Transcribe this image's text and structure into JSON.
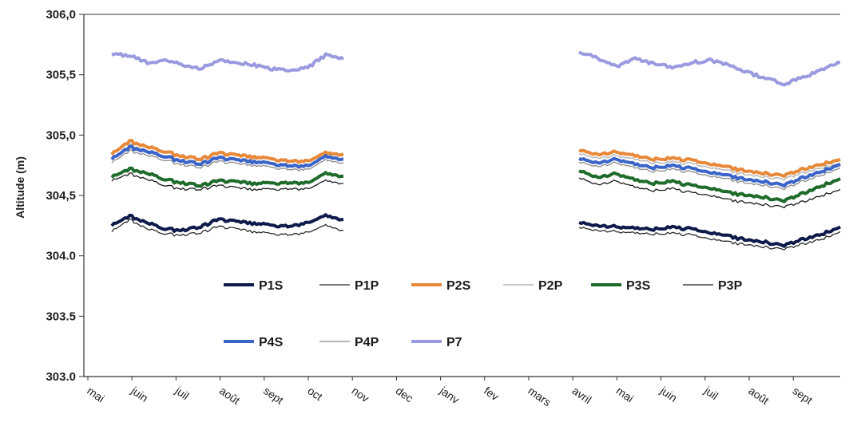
{
  "chart_data": {
    "type": "line",
    "title": "",
    "ylabel": "Altitude (m)",
    "xlabel": "",
    "ylim": [
      303.0,
      306.0
    ],
    "yticks": [
      "303.0",
      "303.5",
      "304.0",
      "304,5",
      "305,0",
      "305,5",
      "306,0"
    ],
    "ytick_values": [
      303.0,
      303.5,
      304.0,
      304.5,
      305.0,
      305.5,
      306.0
    ],
    "x_labels": [
      "mai",
      "juin",
      "juil",
      "août",
      "sept",
      "oct",
      "nov",
      "dec",
      "janv",
      "fev",
      "mars",
      "avril",
      "mai",
      "juin",
      "juil",
      "août",
      "sept"
    ],
    "grid": false,
    "legend_position": "inside-lower-center",
    "series": [
      {
        "name": "P1S",
        "color": "#0d1a4a",
        "seg1": [
          304.25,
          304.33,
          304.27,
          304.22,
          304.21,
          304.24,
          304.3,
          304.28,
          304.27,
          304.25,
          304.24,
          304.27,
          304.34,
          304.3
        ],
        "seg2": [
          304.27,
          304.25,
          304.24,
          304.23,
          304.22,
          304.24,
          304.22,
          304.19,
          304.16,
          304.13,
          304.11,
          304.08,
          304.14,
          304.18,
          304.24
        ]
      },
      {
        "name": "P1P",
        "color": "#2a2a2a",
        "seg1": [
          304.2,
          304.3,
          304.22,
          304.18,
          304.17,
          304.19,
          304.24,
          304.22,
          304.2,
          304.18,
          304.17,
          304.19,
          304.26,
          304.21
        ],
        "seg2": [
          304.23,
          304.21,
          304.2,
          304.19,
          304.18,
          304.19,
          304.17,
          304.14,
          304.11,
          304.09,
          304.07,
          304.05,
          304.1,
          304.14,
          304.2
        ]
      },
      {
        "name": "P2S",
        "color": "#e8893a",
        "seg1": [
          304.84,
          304.95,
          304.9,
          304.86,
          304.82,
          304.8,
          304.85,
          304.83,
          304.82,
          304.8,
          304.78,
          304.78,
          304.86,
          304.84
        ],
        "seg2": [
          304.87,
          304.84,
          304.86,
          304.83,
          304.8,
          304.81,
          304.79,
          304.76,
          304.73,
          304.7,
          304.68,
          304.66,
          304.72,
          304.76,
          304.8
        ]
      },
      {
        "name": "P2P",
        "color": "#b8b8b8",
        "seg1": [
          304.8,
          304.92,
          304.87,
          304.83,
          304.79,
          304.77,
          304.82,
          304.8,
          304.79,
          304.77,
          304.75,
          304.75,
          304.83,
          304.81
        ],
        "seg2": [
          304.84,
          304.81,
          304.83,
          304.8,
          304.77,
          304.78,
          304.76,
          304.73,
          304.7,
          304.67,
          304.65,
          304.63,
          304.69,
          304.73,
          304.77
        ]
      },
      {
        "name": "P3S",
        "color": "#1e6b2a",
        "seg1": [
          304.65,
          304.72,
          304.68,
          304.63,
          304.6,
          304.58,
          304.62,
          304.61,
          304.6,
          304.6,
          304.6,
          304.6,
          304.69,
          304.66
        ],
        "seg2": [
          304.7,
          304.65,
          304.68,
          304.63,
          304.6,
          304.62,
          304.58,
          304.56,
          304.52,
          304.5,
          304.48,
          304.45,
          304.52,
          304.58,
          304.64
        ]
      },
      {
        "name": "P3P",
        "color": "#1a1a1a",
        "seg1": [
          304.62,
          304.68,
          304.63,
          304.58,
          304.55,
          304.55,
          304.58,
          304.56,
          304.55,
          304.55,
          304.55,
          304.55,
          304.63,
          304.6
        ],
        "seg2": [
          304.64,
          304.59,
          304.62,
          304.57,
          304.54,
          304.56,
          304.52,
          304.5,
          304.46,
          304.44,
          304.42,
          304.4,
          304.45,
          304.5,
          304.55
        ]
      },
      {
        "name": "P4S",
        "color": "#3a64c8",
        "seg1": [
          304.8,
          304.9,
          304.86,
          304.82,
          304.78,
          304.76,
          304.81,
          304.79,
          304.78,
          304.76,
          304.74,
          304.74,
          304.83,
          304.8
        ],
        "seg2": [
          304.8,
          304.77,
          304.8,
          304.76,
          304.73,
          304.75,
          304.72,
          304.69,
          304.66,
          304.63,
          304.61,
          304.58,
          304.65,
          304.7,
          304.76
        ]
      },
      {
        "name": "P4P",
        "color": "#8a8a8a",
        "seg1": [
          304.77,
          304.87,
          304.83,
          304.79,
          304.75,
          304.73,
          304.78,
          304.76,
          304.75,
          304.73,
          304.71,
          304.71,
          304.8,
          304.77
        ],
        "seg2": [
          304.77,
          304.74,
          304.77,
          304.73,
          304.7,
          304.72,
          304.69,
          304.66,
          304.63,
          304.6,
          304.58,
          304.55,
          304.62,
          304.67,
          304.73
        ]
      },
      {
        "name": "P7",
        "color": "#9a9ae0",
        "seg1": [
          305.67,
          305.66,
          305.6,
          305.62,
          305.58,
          305.55,
          305.62,
          305.6,
          305.58,
          305.55,
          305.53,
          305.56,
          305.66,
          305.63
        ],
        "seg2": [
          305.68,
          305.64,
          305.57,
          305.63,
          305.59,
          305.56,
          305.6,
          305.62,
          305.58,
          305.52,
          305.47,
          305.42,
          305.48,
          305.54,
          305.6
        ]
      }
    ]
  }
}
